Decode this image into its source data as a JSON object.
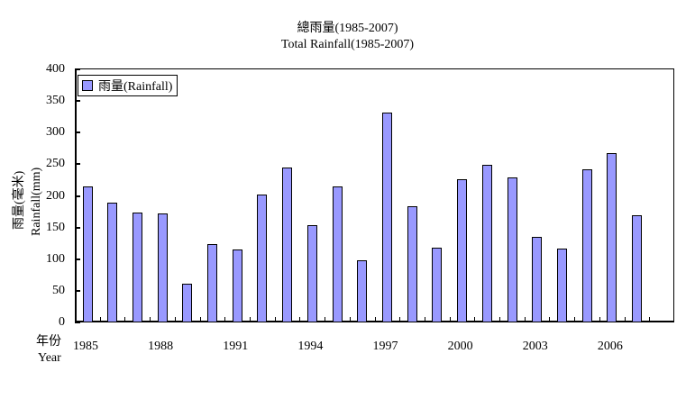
{
  "chart_data": {
    "type": "bar",
    "title": "總雨量(1985-2007)",
    "subtitle": "Total Rainfall(1985-2007)",
    "xlabel": "年份 Year",
    "ylabel": "雨量(毫米) Rainfall(mm)",
    "ylim": [
      0,
      400
    ],
    "yticks": [
      0,
      50,
      100,
      150,
      200,
      250,
      300,
      350,
      400
    ],
    "xtick_labels": [
      "1985",
      "1988",
      "1991",
      "1994",
      "1997",
      "2000",
      "2003",
      "2006"
    ],
    "grid": false,
    "legend_position": "top-left",
    "categories": [
      "1985",
      "1986",
      "1987",
      "1988",
      "1989",
      "1990",
      "1991",
      "1992",
      "1993",
      "1994",
      "1995",
      "1996",
      "1997",
      "1998",
      "1999",
      "2000",
      "2001",
      "2002",
      "2003",
      "2004",
      "2005",
      "2006",
      "2007"
    ],
    "series": [
      {
        "name": "雨量(Rainfall)",
        "color": "#9999ff",
        "values": [
          215,
          190,
          174,
          172,
          61,
          124,
          115,
          202,
          245,
          154,
          215,
          98,
          332,
          184,
          118,
          226,
          249,
          229,
          135,
          117,
          242,
          267,
          169
        ]
      }
    ]
  },
  "labels": {
    "title_zh": "總雨量(1985-2007)",
    "title_en": "Total Rainfall(1985-2007)",
    "ylabel_zh": "雨量(毫米)",
    "ylabel_en": "Rainfall(mm)",
    "xlabel_zh": "年份",
    "xlabel_en": "Year",
    "legend": "雨量(Rainfall)"
  }
}
